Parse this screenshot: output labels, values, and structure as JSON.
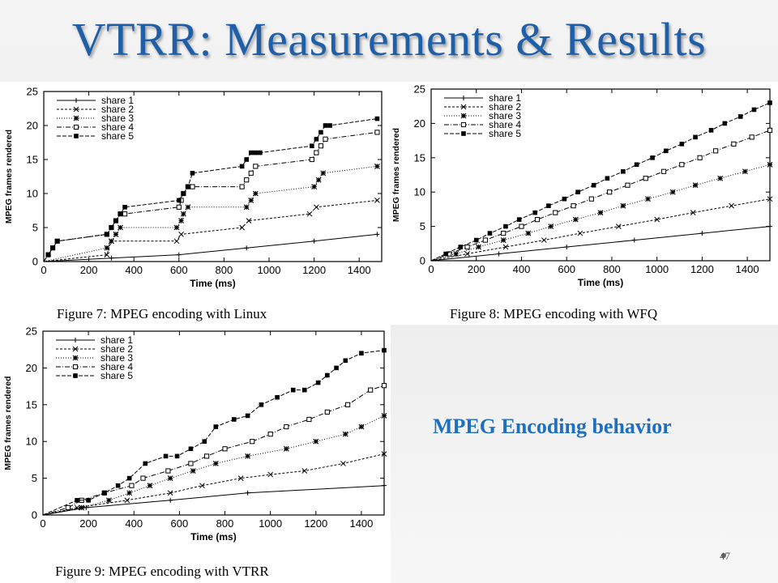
{
  "slide": {
    "title": "VTRR: Measurements & Results",
    "side_text": "MPEG Encoding behavior",
    "page_number": "47"
  },
  "colors": {
    "title": "#1f5fa8",
    "side_text": "#1f6fc0",
    "series": "#000000"
  },
  "chart_data": [
    {
      "type": "line",
      "caption": "Figure 7: MPEG encoding with Linux",
      "xlabel": "Time (ms)",
      "ylabel": "MPEG frames rendered",
      "xlim": [
        0,
        1500
      ],
      "ylim": [
        0,
        25
      ],
      "xticks": [
        "0",
        "200",
        "400",
        "600",
        "800",
        "1000",
        "1200",
        "1400"
      ],
      "yticks": [
        "0",
        "5",
        "10",
        "15",
        "20",
        "25"
      ],
      "legend_position": "top-left",
      "series": [
        {
          "name": "share 1",
          "marker": "plus",
          "dash": "none",
          "x": [
            0,
            300,
            600,
            900,
            1200,
            1480
          ],
          "y": [
            0,
            0.5,
            1,
            2,
            3,
            4
          ]
        },
        {
          "name": "share 2",
          "marker": "cross",
          "dash": "3,2",
          "x": [
            0,
            280,
            300,
            590,
            610,
            880,
            910,
            1180,
            1210,
            1480
          ],
          "y": [
            0,
            1,
            3,
            3,
            4,
            5,
            6,
            7,
            8,
            9
          ]
        },
        {
          "name": "share 3",
          "marker": "star",
          "dash": "1,2",
          "x": [
            0,
            280,
            300,
            320,
            340,
            590,
            610,
            620,
            640,
            900,
            920,
            940,
            1200,
            1220,
            1240,
            1480
          ],
          "y": [
            0,
            2,
            3,
            4,
            5,
            5,
            6,
            7,
            8,
            8,
            9,
            10,
            11,
            12,
            13,
            14
          ]
        },
        {
          "name": "share 4",
          "marker": "open-square",
          "dash": "6,2,1,2",
          "x": [
            0,
            20,
            40,
            60,
            280,
            300,
            320,
            340,
            360,
            600,
            610,
            620,
            640,
            660,
            880,
            900,
            920,
            940,
            1190,
            1210,
            1230,
            1250,
            1480
          ],
          "y": [
            0,
            1,
            2,
            3,
            4,
            5,
            6,
            7,
            7,
            8,
            9,
            10,
            11,
            11,
            11,
            12,
            13,
            14,
            15,
            16,
            17,
            18,
            19
          ]
        },
        {
          "name": "share 5",
          "marker": "filled-square",
          "dash": "5,2",
          "x": [
            0,
            20,
            40,
            60,
            280,
            300,
            320,
            340,
            360,
            600,
            620,
            640,
            660,
            880,
            900,
            920,
            940,
            960,
            1190,
            1210,
            1230,
            1250,
            1270,
            1480
          ],
          "y": [
            0,
            1,
            2,
            3,
            4,
            5,
            6,
            7,
            8,
            9,
            10,
            11,
            13,
            14,
            15,
            16,
            16,
            16,
            17,
            18,
            19,
            20,
            20,
            21
          ]
        }
      ]
    },
    {
      "type": "line",
      "caption": "Figure 8: MPEG encoding with WFQ",
      "xlabel": "Time (ms)",
      "ylabel": "MPEG frames rendered",
      "xlim": [
        0,
        1500
      ],
      "ylim": [
        0,
        25
      ],
      "xticks": [
        "0",
        "200",
        "400",
        "600",
        "800",
        "1000",
        "1200",
        "1400"
      ],
      "yticks": [
        "0",
        "5",
        "10",
        "15",
        "20",
        "25"
      ],
      "legend_position": "top-left",
      "series": [
        {
          "name": "share 1",
          "marker": "plus",
          "dash": "none",
          "x": [
            0,
            300,
            600,
            900,
            1200,
            1500
          ],
          "y": [
            0,
            1,
            2,
            3,
            4,
            5
          ]
        },
        {
          "name": "share 2",
          "marker": "cross",
          "dash": "3,2",
          "x": [
            0,
            160,
            330,
            500,
            660,
            830,
            1000,
            1160,
            1330,
            1500
          ],
          "y": [
            0,
            1,
            2,
            3,
            4,
            5,
            6,
            7,
            8,
            9
          ]
        },
        {
          "name": "share 3",
          "marker": "star",
          "dash": "1,2",
          "x": [
            0,
            110,
            210,
            320,
            430,
            530,
            640,
            750,
            850,
            960,
            1070,
            1170,
            1280,
            1390,
            1500
          ],
          "y": [
            0,
            1,
            2,
            3,
            4,
            5,
            6,
            7,
            8,
            9,
            10,
            11,
            12,
            13,
            14
          ]
        },
        {
          "name": "share 4",
          "marker": "open-square",
          "dash": "6,2,1,2",
          "x": [
            0,
            80,
            160,
            240,
            320,
            400,
            470,
            550,
            630,
            710,
            790,
            870,
            950,
            1030,
            1110,
            1190,
            1260,
            1340,
            1420,
            1500
          ],
          "y": [
            0,
            1,
            2,
            3,
            4,
            5,
            6,
            7,
            8,
            9,
            10,
            11,
            12,
            13,
            14,
            15,
            16,
            17,
            18,
            19
          ]
        },
        {
          "name": "share 5",
          "marker": "filled-square",
          "dash": "5,2",
          "x": [
            0,
            65,
            130,
            200,
            260,
            330,
            390,
            460,
            520,
            590,
            650,
            720,
            780,
            850,
            910,
            980,
            1040,
            1110,
            1170,
            1240,
            1300,
            1370,
            1430,
            1500
          ],
          "y": [
            0,
            1,
            2,
            3,
            4,
            5,
            6,
            7,
            8,
            9,
            10,
            11,
            12,
            13,
            14,
            15,
            16,
            17,
            18,
            19,
            20,
            21,
            22,
            23
          ]
        }
      ]
    },
    {
      "type": "line",
      "caption": "Figure 9: MPEG encoding with VTRR",
      "xlabel": "Time (ms)",
      "ylabel": "MPEG frames rendered",
      "xlim": [
        0,
        1500
      ],
      "ylim": [
        0,
        25
      ],
      "xticks": [
        "0",
        "200",
        "400",
        "600",
        "800",
        "1000",
        "1200",
        "1400"
      ],
      "yticks": [
        "0",
        "5",
        "10",
        "15",
        "20",
        "25"
      ],
      "legend_position": "top-left",
      "series": [
        {
          "name": "share 1",
          "marker": "plus",
          "dash": "none",
          "x": [
            0,
            190,
            560,
            900,
            1500
          ],
          "y": [
            0,
            1,
            2,
            3,
            4
          ]
        },
        {
          "name": "share 2",
          "marker": "cross",
          "dash": "3,2",
          "x": [
            0,
            150,
            370,
            560,
            700,
            870,
            1000,
            1150,
            1320,
            1500
          ],
          "y": [
            0,
            1,
            2,
            3,
            4,
            5,
            5.5,
            6,
            7,
            8.3
          ]
        },
        {
          "name": "share 3",
          "marker": "star",
          "dash": "1,2",
          "x": [
            0,
            170,
            290,
            380,
            470,
            560,
            660,
            760,
            900,
            1070,
            1200,
            1330,
            1400,
            1500
          ],
          "y": [
            0,
            1,
            2,
            3,
            4,
            5,
            6,
            7,
            8,
            9,
            10,
            11,
            12,
            13.5
          ]
        },
        {
          "name": "share 4",
          "marker": "open-square",
          "dash": "6,2,1,2",
          "x": [
            0,
            110,
            170,
            270,
            390,
            440,
            550,
            650,
            720,
            800,
            920,
            1000,
            1070,
            1170,
            1250,
            1340,
            1440,
            1500
          ],
          "y": [
            0,
            1,
            2,
            3,
            4,
            5,
            6,
            7,
            8,
            9,
            10,
            11,
            12,
            13,
            14,
            15,
            17,
            17.6
          ]
        },
        {
          "name": "share 5",
          "marker": "filled-square",
          "dash": "5,2",
          "x": [
            0,
            150,
            200,
            270,
            330,
            380,
            450,
            540,
            590,
            650,
            710,
            760,
            840,
            900,
            960,
            1030,
            1100,
            1150,
            1210,
            1250,
            1290,
            1330,
            1400,
            1500
          ],
          "y": [
            0,
            2,
            2,
            3,
            4,
            5,
            7,
            8,
            8,
            9,
            10,
            12,
            13,
            13.5,
            15,
            16,
            17,
            17,
            18,
            19,
            20,
            21,
            22,
            22.4
          ]
        }
      ]
    }
  ]
}
